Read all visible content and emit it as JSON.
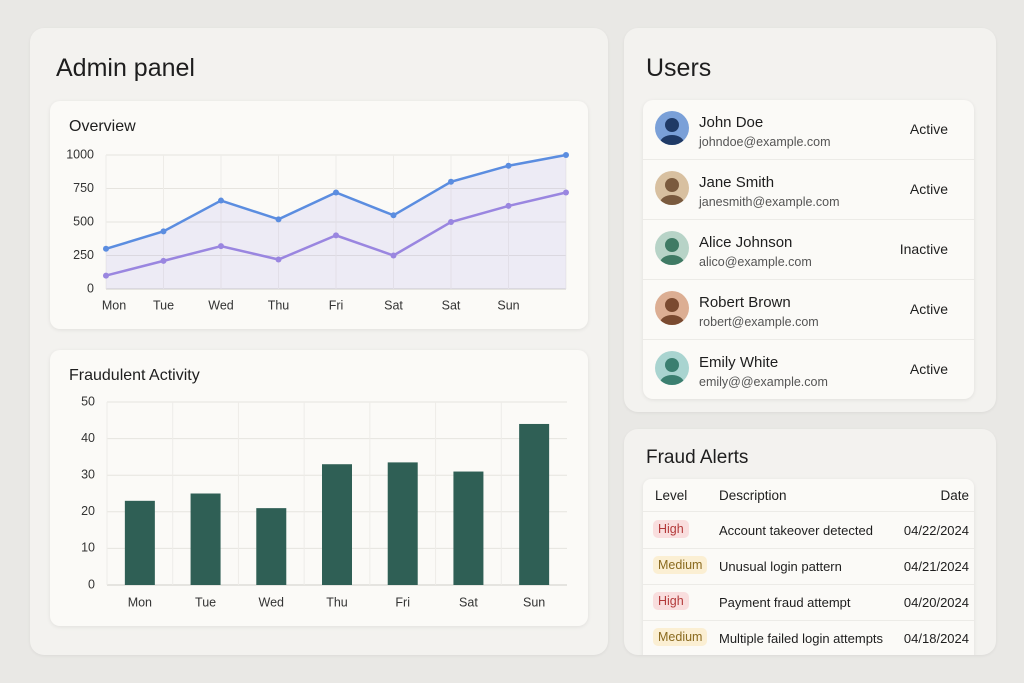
{
  "admin_title": "Admin panel",
  "chart_data": [
    {
      "type": "line",
      "title": "Overview",
      "categories": [
        "Mon",
        "Tue",
        "Wed",
        "Thu",
        "Fri",
        "Sat",
        "Sat",
        "Sun",
        null
      ],
      "series": [
        {
          "color": "#5b8de0",
          "values": [
            300,
            430,
            660,
            520,
            720,
            550,
            800,
            920,
            1000
          ]
        },
        {
          "color": "#9a86e0",
          "values": [
            100,
            210,
            320,
            220,
            400,
            250,
            500,
            620,
            720
          ]
        }
      ],
      "ylim": [
        0,
        1000
      ],
      "yticks": [
        0,
        250,
        500,
        750,
        1000
      ],
      "grid": true
    },
    {
      "type": "bar",
      "title": "Fraudulent Activity",
      "categories": [
        "Mon",
        "Tue",
        "Wed",
        "Thu",
        "Fri",
        "Sat",
        "Sun"
      ],
      "values": [
        23,
        25,
        21,
        33,
        33.5,
        31,
        44
      ],
      "color": "#2f5f55",
      "ylim": [
        0,
        50
      ],
      "yticks": [
        0,
        10,
        20,
        30,
        40,
        50
      ],
      "grid": true
    }
  ],
  "users": {
    "title": "Users",
    "rows": [
      {
        "name": "John Doe",
        "email": "johndoe@example.com",
        "status": "Active"
      },
      {
        "name": "Jane Smith",
        "email": "janesmith@example.com",
        "status": "Active"
      },
      {
        "name": "Alice Johnson",
        "email": "alico@example.com",
        "status": "Inactive"
      },
      {
        "name": "Robert Brown",
        "email": "robert@example.com",
        "status": "Active"
      },
      {
        "name": "Emily White",
        "email": "emily@@example.com",
        "status": "Active"
      }
    ]
  },
  "fraud_alerts": {
    "title": "Fraud Alerts",
    "headers": [
      "Level",
      "Description",
      "Date"
    ],
    "rows": [
      [
        "High",
        "Account takeover detected",
        "04/22/2024"
      ],
      [
        "Medium",
        "Unusual login pattern",
        "04/21/2024"
      ],
      [
        "High",
        "Payment fraud attempt",
        "04/20/2024"
      ],
      [
        "Medium",
        "Multiple failed login attempts",
        "04/18/2024"
      ]
    ]
  }
}
